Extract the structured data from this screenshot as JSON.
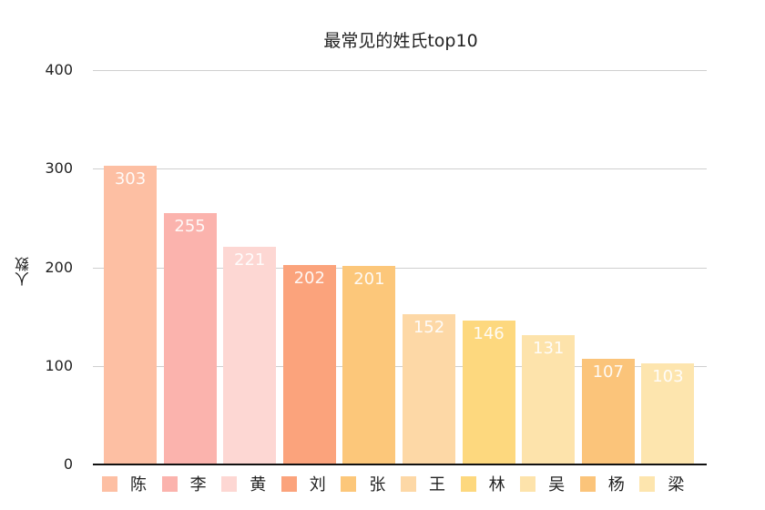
{
  "chart_data": {
    "type": "bar",
    "title": "最常见的姓氏top10",
    "xlabel": "",
    "ylabel": "人数",
    "ylim": [
      0,
      400
    ],
    "yticks": [
      0,
      100,
      200,
      300,
      400
    ],
    "grid": true,
    "legend_position": "bottom",
    "categories": [
      "陈",
      "李",
      "黄",
      "刘",
      "张",
      "王",
      "林",
      "吴",
      "杨",
      "梁"
    ],
    "values": [
      303,
      255,
      221,
      202,
      201,
      152,
      146,
      131,
      107,
      103
    ],
    "colors": [
      "#fdbfa3",
      "#fbb3ad",
      "#fdd7d3",
      "#fba37c",
      "#fcc77a",
      "#fdd8a6",
      "#fdd87e",
      "#fde3ab",
      "#fbc47a",
      "#fde5ae"
    ]
  }
}
